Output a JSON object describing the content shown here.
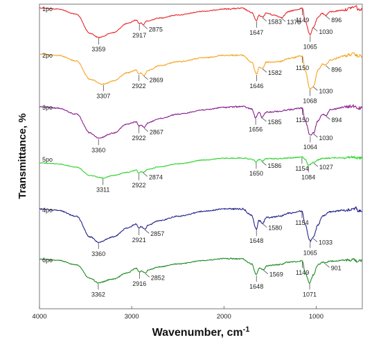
{
  "chart_data": {
    "type": "line",
    "xlabel": "Wavenumber, cm",
    "xlabel_sup": "-1",
    "ylabel": "Transmittance, %",
    "xlim": [
      4000,
      500
    ],
    "x_reversed": true,
    "x_ticks": [
      "4000",
      "3000",
      "2000",
      "1000"
    ],
    "grid": false,
    "series": [
      {
        "name": "1po",
        "color": "#e8262b",
        "band": 0,
        "points": [
          [
            4000,
            0.07
          ],
          [
            3800,
            0.1
          ],
          [
            3600,
            0.25
          ],
          [
            3450,
            0.8
          ],
          [
            3359,
            0.92
          ],
          [
            3200,
            0.78
          ],
          [
            3050,
            0.52
          ],
          [
            2950,
            0.42
          ],
          [
            2917,
            0.52
          ],
          [
            2900,
            0.5
          ],
          [
            2875,
            0.55
          ],
          [
            2840,
            0.45
          ],
          [
            2700,
            0.36
          ],
          [
            2500,
            0.27
          ],
          [
            2200,
            0.16
          ],
          [
            2000,
            0.1
          ],
          [
            1800,
            0.08
          ],
          [
            1700,
            0.2
          ],
          [
            1647,
            0.44
          ],
          [
            1620,
            0.28
          ],
          [
            1583,
            0.33
          ],
          [
            1540,
            0.22
          ],
          [
            1450,
            0.28
          ],
          [
            1378,
            0.34
          ],
          [
            1300,
            0.18
          ],
          [
            1250,
            0.14
          ],
          [
            1149,
            0.08
          ],
          [
            1120,
            0.45
          ],
          [
            1065,
            0.85
          ],
          [
            1030,
            0.62
          ],
          [
            980,
            0.35
          ],
          [
            940,
            0.22
          ],
          [
            896,
            0.28
          ],
          [
            850,
            0.18
          ],
          [
            700,
            0.13
          ],
          [
            600,
            0.05
          ],
          [
            560,
            0.02
          ],
          [
            550,
            0.12
          ]
        ],
        "peaks": [
          {
            "label": "3359",
            "wn": 3359,
            "pos": "below"
          },
          {
            "label": "2917",
            "wn": 2917,
            "pos": "below"
          },
          {
            "label": "2875",
            "wn": 2875,
            "pos": "right"
          },
          {
            "label": "1647",
            "wn": 1647,
            "pos": "below"
          },
          {
            "label": "1583",
            "wn": 1583,
            "pos": "right"
          },
          {
            "label": "1378",
            "wn": 1378,
            "pos": "right"
          },
          {
            "label": "1149",
            "wn": 1149,
            "pos": "below"
          },
          {
            "label": "1065",
            "wn": 1065,
            "pos": "below"
          },
          {
            "label": "1030",
            "wn": 1030,
            "pos": "right"
          },
          {
            "label": "896",
            "wn": 896,
            "pos": "right"
          }
        ]
      },
      {
        "name": "2po",
        "color": "#f5a31f",
        "band": 1,
        "points": [
          [
            4000,
            0.05
          ],
          [
            3800,
            0.08
          ],
          [
            3600,
            0.22
          ],
          [
            3450,
            0.68
          ],
          [
            3307,
            0.8
          ],
          [
            3200,
            0.72
          ],
          [
            3050,
            0.52
          ],
          [
            2950,
            0.45
          ],
          [
            2922,
            0.55
          ],
          [
            2900,
            0.52
          ],
          [
            2869,
            0.58
          ],
          [
            2820,
            0.46
          ],
          [
            2700,
            0.34
          ],
          [
            2500,
            0.24
          ],
          [
            2200,
            0.14
          ],
          [
            2000,
            0.08
          ],
          [
            1800,
            0.08
          ],
          [
            1700,
            0.25
          ],
          [
            1646,
            0.55
          ],
          [
            1620,
            0.38
          ],
          [
            1582,
            0.4
          ],
          [
            1540,
            0.25
          ],
          [
            1400,
            0.24
          ],
          [
            1300,
            0.16
          ],
          [
            1150,
            0.1
          ],
          [
            1120,
            0.45
          ],
          [
            1068,
            0.92
          ],
          [
            1030,
            0.85
          ],
          [
            980,
            0.45
          ],
          [
            930,
            0.3
          ],
          [
            896,
            0.32
          ],
          [
            850,
            0.2
          ],
          [
            700,
            0.1
          ],
          [
            600,
            0.05
          ],
          [
            550,
            0.1
          ]
        ],
        "peaks": [
          {
            "label": "3307",
            "wn": 3307,
            "pos": "below"
          },
          {
            "label": "2922",
            "wn": 2922,
            "pos": "below"
          },
          {
            "label": "2869",
            "wn": 2869,
            "pos": "right"
          },
          {
            "label": "1646",
            "wn": 1646,
            "pos": "below"
          },
          {
            "label": "1582",
            "wn": 1582,
            "pos": "right"
          },
          {
            "label": "1150",
            "wn": 1150,
            "pos": "below"
          },
          {
            "label": "1068",
            "wn": 1068,
            "pos": "below"
          },
          {
            "label": "1030",
            "wn": 1030,
            "pos": "right"
          },
          {
            "label": "896",
            "wn": 896,
            "pos": "right"
          }
        ]
      },
      {
        "name": "3po",
        "color": "#8a1f8f",
        "band": 2,
        "points": [
          [
            4000,
            0.07
          ],
          [
            3800,
            0.1
          ],
          [
            3600,
            0.25
          ],
          [
            3450,
            0.72
          ],
          [
            3360,
            0.85
          ],
          [
            3200,
            0.72
          ],
          [
            3050,
            0.5
          ],
          [
            2950,
            0.44
          ],
          [
            2922,
            0.55
          ],
          [
            2900,
            0.52
          ],
          [
            2867,
            0.58
          ],
          [
            2820,
            0.46
          ],
          [
            2700,
            0.36
          ],
          [
            2500,
            0.25
          ],
          [
            2200,
            0.14
          ],
          [
            2000,
            0.08
          ],
          [
            1800,
            0.06
          ],
          [
            1700,
            0.12
          ],
          [
            1656,
            0.34
          ],
          [
            1620,
            0.2
          ],
          [
            1585,
            0.33
          ],
          [
            1540,
            0.2
          ],
          [
            1400,
            0.18
          ],
          [
            1300,
            0.14
          ],
          [
            1150,
            0.1
          ],
          [
            1120,
            0.42
          ],
          [
            1064,
            0.78
          ],
          [
            1030,
            0.72
          ],
          [
            980,
            0.42
          ],
          [
            930,
            0.25
          ],
          [
            894,
            0.28
          ],
          [
            850,
            0.14
          ],
          [
            700,
            0.08
          ],
          [
            600,
            0.05
          ],
          [
            550,
            0.1
          ]
        ],
        "peaks": [
          {
            "label": "3360",
            "wn": 3360,
            "pos": "below"
          },
          {
            "label": "2922",
            "wn": 2922,
            "pos": "below"
          },
          {
            "label": "2867",
            "wn": 2867,
            "pos": "right"
          },
          {
            "label": "1656",
            "wn": 1656,
            "pos": "below"
          },
          {
            "label": "1585",
            "wn": 1585,
            "pos": "right"
          },
          {
            "label": "1150",
            "wn": 1150,
            "pos": "below"
          },
          {
            "label": "1064",
            "wn": 1064,
            "pos": "below"
          },
          {
            "label": "1030",
            "wn": 1030,
            "pos": "right"
          },
          {
            "label": "894",
            "wn": 894,
            "pos": "right"
          }
        ]
      },
      {
        "name": "5po",
        "color": "#2bd42a",
        "band": 3,
        "points": [
          [
            4000,
            0.22
          ],
          [
            3800,
            0.25
          ],
          [
            3600,
            0.35
          ],
          [
            3450,
            0.62
          ],
          [
            3311,
            0.7
          ],
          [
            3200,
            0.62
          ],
          [
            3050,
            0.52
          ],
          [
            2950,
            0.45
          ],
          [
            2922,
            0.55
          ],
          [
            2900,
            0.5
          ],
          [
            2874,
            0.52
          ],
          [
            2820,
            0.42
          ],
          [
            2700,
            0.34
          ],
          [
            2500,
            0.25
          ],
          [
            2200,
            0.12
          ],
          [
            2000,
            0.07
          ],
          [
            1800,
            0.06
          ],
          [
            1700,
            0.1
          ],
          [
            1650,
            0.18
          ],
          [
            1620,
            0.1
          ],
          [
            1586,
            0.16
          ],
          [
            1540,
            0.08
          ],
          [
            1400,
            0.08
          ],
          [
            1300,
            0.06
          ],
          [
            1200,
            0.04
          ],
          [
            1154,
            0.02
          ],
          [
            1120,
            0.1
          ],
          [
            1084,
            0.3
          ],
          [
            1027,
            0.2
          ],
          [
            980,
            0.12
          ],
          [
            930,
            0.08
          ],
          [
            850,
            0.06
          ],
          [
            700,
            0.05
          ],
          [
            600,
            0.03
          ],
          [
            550,
            0.06
          ]
        ],
        "peaks": [
          {
            "label": "3311",
            "wn": 3311,
            "pos": "below"
          },
          {
            "label": "2922",
            "wn": 2922,
            "pos": "below"
          },
          {
            "label": "2874",
            "wn": 2874,
            "pos": "right"
          },
          {
            "label": "1650",
            "wn": 1650,
            "pos": "below"
          },
          {
            "label": "1586",
            "wn": 1586,
            "pos": "right"
          },
          {
            "label": "1154",
            "wn": 1154,
            "pos": "below"
          },
          {
            "label": "1084",
            "wn": 1084,
            "pos": "below"
          },
          {
            "label": "1027",
            "wn": 1027,
            "pos": "right"
          }
        ]
      },
      {
        "name": "4po",
        "color": "#23238a",
        "band": 4,
        "points": [
          [
            4000,
            0.05
          ],
          [
            3800,
            0.08
          ],
          [
            3600,
            0.22
          ],
          [
            3450,
            0.7
          ],
          [
            3360,
            0.82
          ],
          [
            3200,
            0.7
          ],
          [
            3050,
            0.5
          ],
          [
            2950,
            0.4
          ],
          [
            2921,
            0.5
          ],
          [
            2900,
            0.46
          ],
          [
            2857,
            0.52
          ],
          [
            2820,
            0.42
          ],
          [
            2700,
            0.32
          ],
          [
            2500,
            0.22
          ],
          [
            2200,
            0.1
          ],
          [
            2000,
            0.05
          ],
          [
            1800,
            0.05
          ],
          [
            1700,
            0.2
          ],
          [
            1648,
            0.52
          ],
          [
            1620,
            0.32
          ],
          [
            1580,
            0.38
          ],
          [
            1540,
            0.25
          ],
          [
            1400,
            0.22
          ],
          [
            1300,
            0.15
          ],
          [
            1154,
            0.1
          ],
          [
            1120,
            0.42
          ],
          [
            1065,
            0.8
          ],
          [
            1033,
            0.72
          ],
          [
            980,
            0.42
          ],
          [
            930,
            0.22
          ],
          [
            850,
            0.12
          ],
          [
            700,
            0.08
          ],
          [
            600,
            0.05
          ],
          [
            560,
            0.02
          ],
          [
            550,
            0.1
          ]
        ],
        "peaks": [
          {
            "label": "3360",
            "wn": 3360,
            "pos": "below"
          },
          {
            "label": "2921",
            "wn": 2921,
            "pos": "below"
          },
          {
            "label": "2857",
            "wn": 2857,
            "pos": "right"
          },
          {
            "label": "1648",
            "wn": 1648,
            "pos": "below"
          },
          {
            "label": "1580",
            "wn": 1580,
            "pos": "right"
          },
          {
            "label": "1154",
            "wn": 1154,
            "pos": "below"
          },
          {
            "label": "1065",
            "wn": 1065,
            "pos": "below"
          },
          {
            "label": "1033",
            "wn": 1033,
            "pos": "right"
          }
        ]
      },
      {
        "name": "6po",
        "color": "#1e8a23",
        "band": 5,
        "points": [
          [
            4000,
            0.07
          ],
          [
            3800,
            0.1
          ],
          [
            3600,
            0.22
          ],
          [
            3450,
            0.6
          ],
          [
            3362,
            0.72
          ],
          [
            3200,
            0.62
          ],
          [
            3050,
            0.45
          ],
          [
            2950,
            0.32
          ],
          [
            2916,
            0.42
          ],
          [
            2900,
            0.4
          ],
          [
            2852,
            0.45
          ],
          [
            2820,
            0.36
          ],
          [
            2700,
            0.28
          ],
          [
            2500,
            0.2
          ],
          [
            2200,
            0.1
          ],
          [
            2000,
            0.05
          ],
          [
            1800,
            0.06
          ],
          [
            1700,
            0.2
          ],
          [
            1648,
            0.5
          ],
          [
            1620,
            0.32
          ],
          [
            1569,
            0.36
          ],
          [
            1540,
            0.25
          ],
          [
            1400,
            0.22
          ],
          [
            1300,
            0.15
          ],
          [
            1149,
            0.12
          ],
          [
            1120,
            0.45
          ],
          [
            1071,
            0.72
          ],
          [
            1030,
            0.5
          ],
          [
            980,
            0.22
          ],
          [
            930,
            0.15
          ],
          [
            901,
            0.18
          ],
          [
            850,
            0.12
          ],
          [
            700,
            0.1
          ],
          [
            600,
            0.08
          ],
          [
            550,
            0.12
          ]
        ],
        "peaks": [
          {
            "label": "3362",
            "wn": 3362,
            "pos": "below"
          },
          {
            "label": "2916",
            "wn": 2916,
            "pos": "below"
          },
          {
            "label": "2852",
            "wn": 2852,
            "pos": "right"
          },
          {
            "label": "1648",
            "wn": 1648,
            "pos": "below"
          },
          {
            "label": "1569",
            "wn": 1569,
            "pos": "right"
          },
          {
            "label": "1149",
            "wn": 1149,
            "pos": "below"
          },
          {
            "label": "1071",
            "wn": 1071,
            "pos": "below"
          },
          {
            "label": "901",
            "wn": 901,
            "pos": "right"
          }
        ]
      }
    ]
  }
}
